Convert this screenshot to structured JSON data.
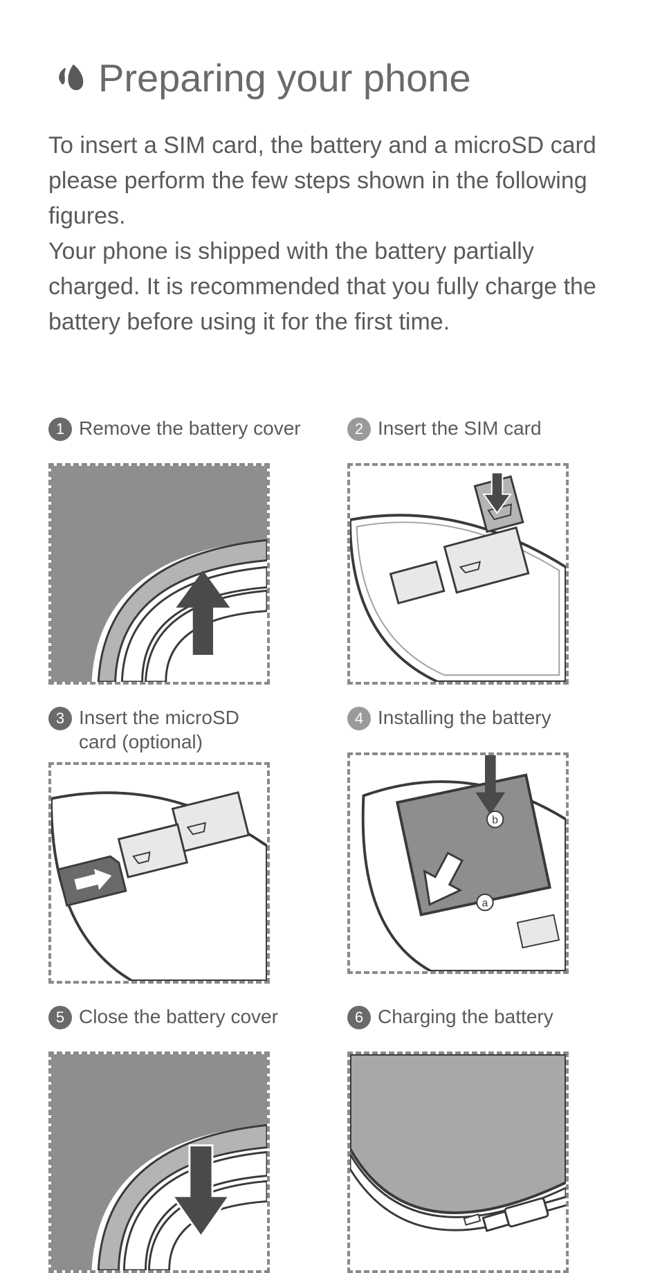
{
  "title": "Preparing your phone",
  "intro": "To insert a SIM card, the battery and a microSD card please perform the few steps shown in the following figures.\nYour phone is shipped with the battery partially charged. It is recommended that you fully charge the battery before using it for the first time.",
  "colors": {
    "text": "#5a5a5a",
    "title": "#6a6a6a",
    "circle_grey": "#9a9a9a",
    "circle_dark": "#6a6a6a",
    "dashed_border": "#8a8a8a",
    "illus_light": "#b4b4b4",
    "illus_mid": "#8e8e8e",
    "illus_dark": "#5a5a5a",
    "illus_outline": "#3a3a3a",
    "background": "#ffffff"
  },
  "bullet_icon": {
    "shape": "two-drops",
    "fill": "#5a5a5a"
  },
  "steps": [
    {
      "num": "1",
      "label": "Remove the battery cover",
      "circle_color": "#6a6a6a"
    },
    {
      "num": "2",
      "label": "Insert the SIM card",
      "circle_color": "#9a9a9a"
    },
    {
      "num": "3",
      "label": "Insert the microSD\ncard (optional)",
      "circle_color": "#6a6a6a"
    },
    {
      "num": "4",
      "label": "Installing the battery",
      "circle_color": "#9a9a9a"
    },
    {
      "num": "5",
      "label": "Close the battery cover",
      "circle_color": "#6a6a6a"
    },
    {
      "num": "6",
      "label": "Charging the battery",
      "circle_color": "#6a6a6a"
    }
  ]
}
